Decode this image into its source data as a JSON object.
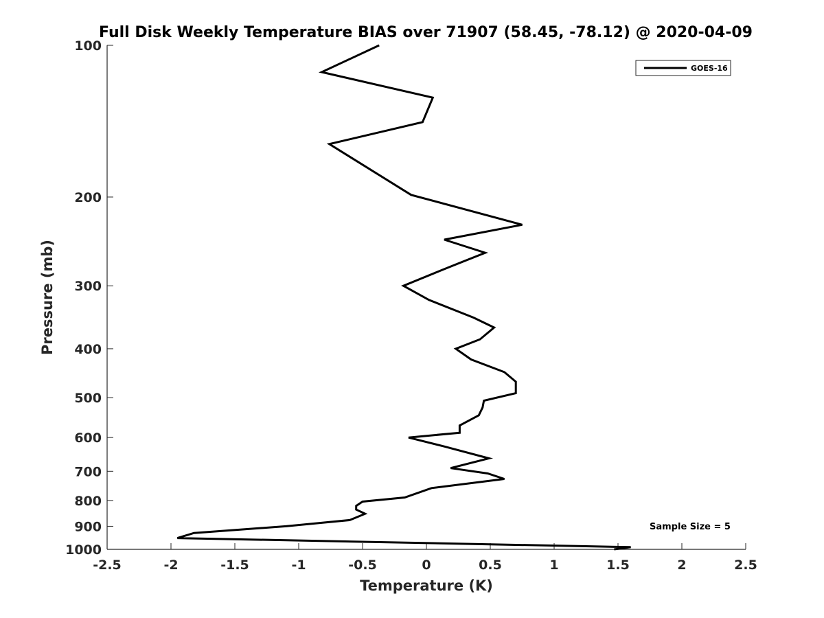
{
  "chart_data": {
    "type": "line",
    "title": "Full Disk Weekly Temperature BIAS over 71907 (58.45, -78.12) @ 2020-04-09",
    "xlabel": "Temperature (K)",
    "ylabel": "Pressure (mb)",
    "xlim": [
      -2.5,
      2.5
    ],
    "ylim": [
      1000,
      100
    ],
    "yscale": "log",
    "y_reversed": true,
    "grid": false,
    "legend_position": "top-right",
    "x_ticks": [
      -2.5,
      -2,
      -1.5,
      -1,
      -0.5,
      0,
      0.5,
      1,
      1.5,
      2,
      2.5
    ],
    "x_tick_labels": [
      "-2.5",
      "-2",
      "-1.5",
      "-1",
      "-0.5",
      "0",
      "0.5",
      "1",
      "1.5",
      "2",
      "2.5"
    ],
    "y_ticks": [
      100,
      200,
      300,
      400,
      500,
      600,
      700,
      800,
      900,
      1000
    ],
    "y_tick_labels": [
      "100",
      "200",
      "300",
      "400",
      "500",
      "600",
      "700",
      "800",
      "900",
      "1000"
    ],
    "annotation": "Sample Size = 5",
    "series": [
      {
        "name": "GOES-16",
        "color": "#000000",
        "x": [
          -0.37,
          -0.82,
          0.05,
          -0.03,
          -0.76,
          -0.12,
          0.75,
          0.14,
          0.46,
          0.17,
          -0.18,
          0.02,
          0.37,
          0.53,
          0.42,
          0.23,
          0.35,
          0.61,
          0.7,
          0.7,
          0.45,
          0.44,
          0.41,
          0.26,
          0.26,
          -0.14,
          0.14,
          0.49,
          0.19,
          0.48,
          0.61,
          0.04,
          -0.17,
          -0.5,
          -0.55,
          -0.55,
          -0.48,
          -0.6,
          -1.1,
          -1.82,
          -1.95,
          1.6,
          1.47
        ],
        "y": [
          100,
          113,
          127,
          142,
          157,
          198,
          227,
          243,
          258,
          276,
          300,
          320,
          347,
          363,
          383,
          400,
          420,
          445,
          465,
          490,
          507,
          523,
          542,
          568,
          587,
          600,
          625,
          660,
          690,
          707,
          725,
          756,
          789,
          804,
          820,
          834,
          850,
          875,
          900,
          928,
          950,
          990,
          1000
        ]
      }
    ]
  }
}
